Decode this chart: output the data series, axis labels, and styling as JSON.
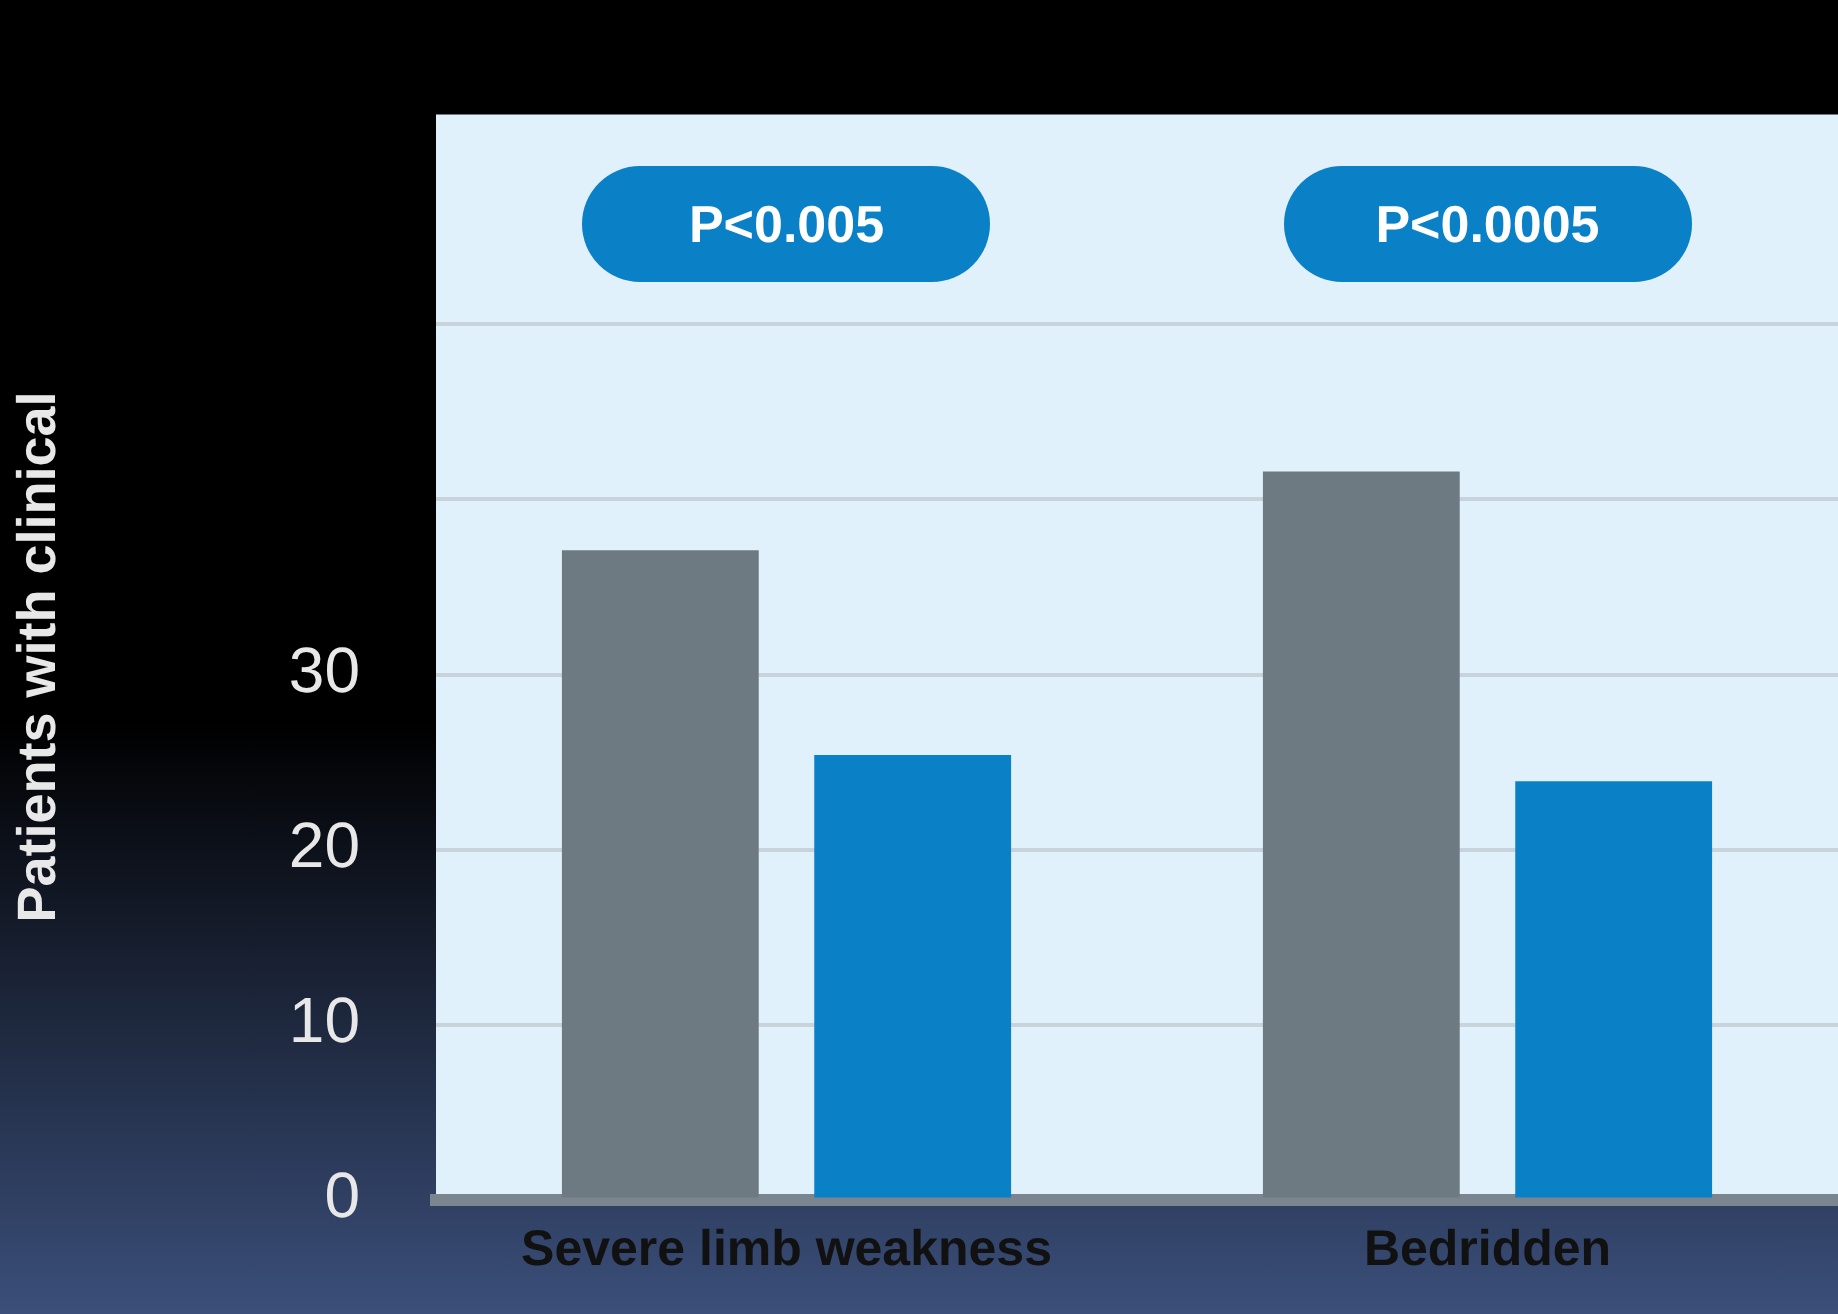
{
  "chart_data": {
    "type": "bar",
    "ylabel": "Patients with clinical",
    "categories": [
      "Severe limb weakness",
      "Bedridden"
    ],
    "series": [
      {
        "color": "#6e7a82",
        "values": [
          37.1,
          41.6
        ]
      },
      {
        "color": "#0a80c6",
        "values": [
          25.4,
          23.9
        ]
      }
    ],
    "ylim": [
      0,
      62
    ],
    "yticks": [
      0,
      10,
      20,
      30,
      {
        "value": 40,
        "label": null
      },
      {
        "value": 50,
        "label": null
      }
    ],
    "grid": "y",
    "legend": false,
    "annotations": [
      "P<0.005",
      "P<0.0005"
    ]
  }
}
